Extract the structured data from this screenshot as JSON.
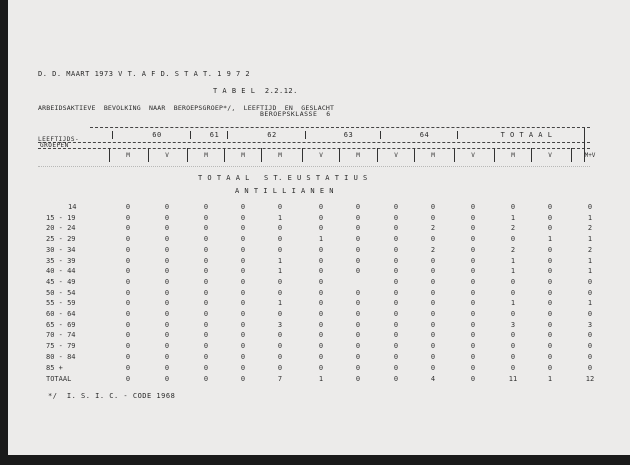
{
  "header": {
    "source": "D. D. MAART 1973 V T. A F D. S T A T. 1 9 7 2",
    "table_no": "T A B E L  2.2.12.",
    "title": "ARBEIDSAKTIEVE  BEVOLKING  NAAR  BEROEPSGROEP*/,  LEEFTIJD  EN  GESLACHT",
    "subtitle": "BEROEPSKLASSE  6"
  },
  "table": {
    "row_header": [
      "LEEFTIJDS-",
      "GROEPEN"
    ],
    "groups": [
      "60",
      "61",
      "62",
      "63",
      "64",
      "T O T A A L"
    ],
    "subheaders": [
      "M",
      "V",
      "M",
      "M",
      "M",
      "V",
      "M",
      "V",
      "M",
      "V",
      "M",
      "V",
      "M+V"
    ],
    "section": "T O T A A L   S T. E U S T A T I U S",
    "subsection": "A N T I L L I A N E N",
    "rows": [
      {
        "age": "14",
        "values": [
          "0",
          "0",
          "0",
          "0",
          "0",
          "0",
          "0",
          "0",
          "0",
          "0",
          "0",
          "0",
          "0"
        ]
      },
      {
        "age": "15 - 19",
        "values": [
          "0",
          "0",
          "0",
          "0",
          "1",
          "0",
          "0",
          "0",
          "0",
          "0",
          "1",
          "0",
          "1"
        ]
      },
      {
        "age": "20 - 24",
        "values": [
          "0",
          "0",
          "0",
          "0",
          "0",
          "0",
          "0",
          "0",
          "2",
          "0",
          "2",
          "0",
          "2"
        ]
      },
      {
        "age": "25 - 29",
        "values": [
          "0",
          "0",
          "0",
          "0",
          "0",
          "1",
          "0",
          "0",
          "0",
          "0",
          "0",
          "1",
          "1"
        ]
      },
      {
        "age": "30 - 34",
        "values": [
          "0",
          "0",
          "0",
          "0",
          "0",
          "0",
          "0",
          "0",
          "2",
          "0",
          "2",
          "0",
          "2"
        ]
      },
      {
        "age": "35 - 39",
        "values": [
          "0",
          "0",
          "0",
          "0",
          "1",
          "0",
          "0",
          "0",
          "0",
          "0",
          "1",
          "0",
          "1"
        ]
      },
      {
        "age": "40 - 44",
        "values": [
          "0",
          "0",
          "0",
          "0",
          "1",
          "0",
          "0",
          "0",
          "0",
          "0",
          "1",
          "0",
          "1"
        ]
      },
      {
        "age": "45 - 49",
        "values": [
          "0",
          "0",
          "0",
          "0",
          "0",
          "0",
          "",
          "0",
          "0",
          "0",
          "0",
          "0",
          "0"
        ]
      },
      {
        "age": "50 - 54",
        "values": [
          "0",
          "0",
          "0",
          "0",
          "0",
          "0",
          "0",
          "0",
          "0",
          "0",
          "0",
          "0",
          "0"
        ]
      },
      {
        "age": "55 - 59",
        "values": [
          "0",
          "0",
          "0",
          "0",
          "1",
          "0",
          "0",
          "0",
          "0",
          "0",
          "1",
          "0",
          "1"
        ]
      },
      {
        "age": "60 - 64",
        "values": [
          "0",
          "0",
          "0",
          "0",
          "0",
          "0",
          "0",
          "0",
          "0",
          "0",
          "0",
          "0",
          "0"
        ]
      },
      {
        "age": "65 - 69",
        "values": [
          "0",
          "0",
          "0",
          "0",
          "3",
          "0",
          "0",
          "0",
          "0",
          "0",
          "3",
          "0",
          "3"
        ]
      },
      {
        "age": "70 - 74",
        "values": [
          "0",
          "0",
          "0",
          "0",
          "0",
          "0",
          "0",
          "0",
          "0",
          "0",
          "0",
          "0",
          "0"
        ]
      },
      {
        "age": "75 - 79",
        "values": [
          "0",
          "0",
          "0",
          "0",
          "0",
          "0",
          "0",
          "0",
          "0",
          "0",
          "0",
          "0",
          "0"
        ]
      },
      {
        "age": "80 - 84",
        "values": [
          "0",
          "0",
          "0",
          "0",
          "0",
          "0",
          "0",
          "0",
          "0",
          "0",
          "0",
          "0",
          "0"
        ]
      },
      {
        "age": "85 +",
        "values": [
          "0",
          "0",
          "0",
          "0",
          "0",
          "0",
          "0",
          "0",
          "0",
          "0",
          "0",
          "0",
          "0"
        ]
      }
    ],
    "total": {
      "age": "TOTAAL",
      "values": [
        "0",
        "0",
        "0",
        "0",
        "7",
        "1",
        "0",
        "0",
        "4",
        "0",
        "11",
        "1",
        "12"
      ]
    }
  },
  "footnote": "*/  I. S. I. C. - CODE 1968"
}
